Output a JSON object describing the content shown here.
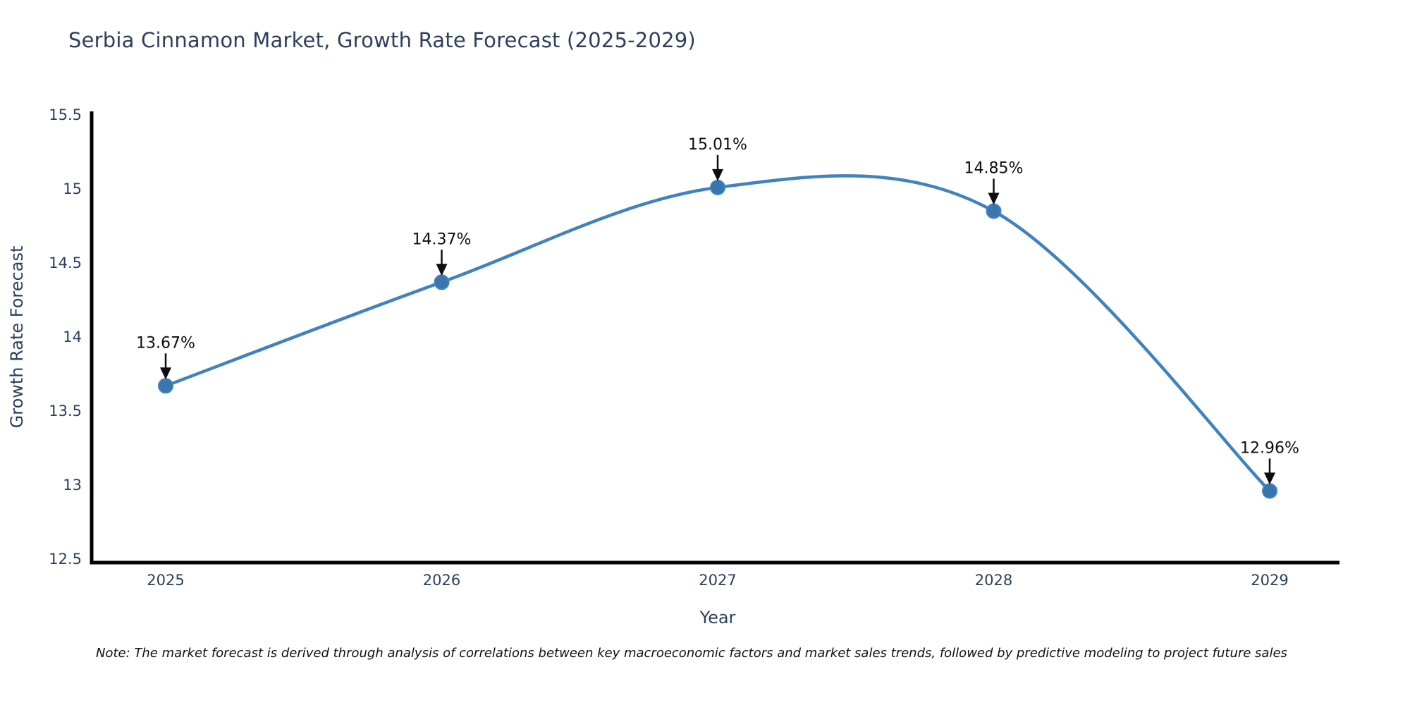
{
  "chart": {
    "title": "Serbia Cinnamon Market, Growth Rate Forecast (2025-2029)",
    "note": "Note: The market forecast is derived through analysis of correlations between key macroeconomic factors and market sales trends, followed by predictive modeling to project future sales"
  },
  "chart_data": {
    "type": "line",
    "title": "Serbia Cinnamon Market, Growth Rate Forecast (2025-2029)",
    "xlabel": "Year",
    "ylabel": "Growth Rate Forecast",
    "x": [
      2025,
      2026,
      2027,
      2028,
      2029
    ],
    "values": [
      13.67,
      14.37,
      15.01,
      14.85,
      12.96
    ],
    "point_labels": [
      "13.67%",
      "14.37%",
      "15.01%",
      "14.85%",
      "12.96%"
    ],
    "xticks": [
      "2025",
      "2026",
      "2027",
      "2028",
      "2029"
    ],
    "yticks": [
      12.5,
      13,
      13.5,
      14,
      14.5,
      15,
      15.5
    ],
    "ylim": [
      12.5,
      15.5
    ],
    "grid": false,
    "legend": "none",
    "line_shape": "spline",
    "colors": {
      "line": "#3f82be",
      "marker": "#3a76ae",
      "axis": "#000000",
      "axis_text": "#2a3f5f",
      "annotation": "#0d0d0d",
      "background": "#ffffff"
    }
  }
}
